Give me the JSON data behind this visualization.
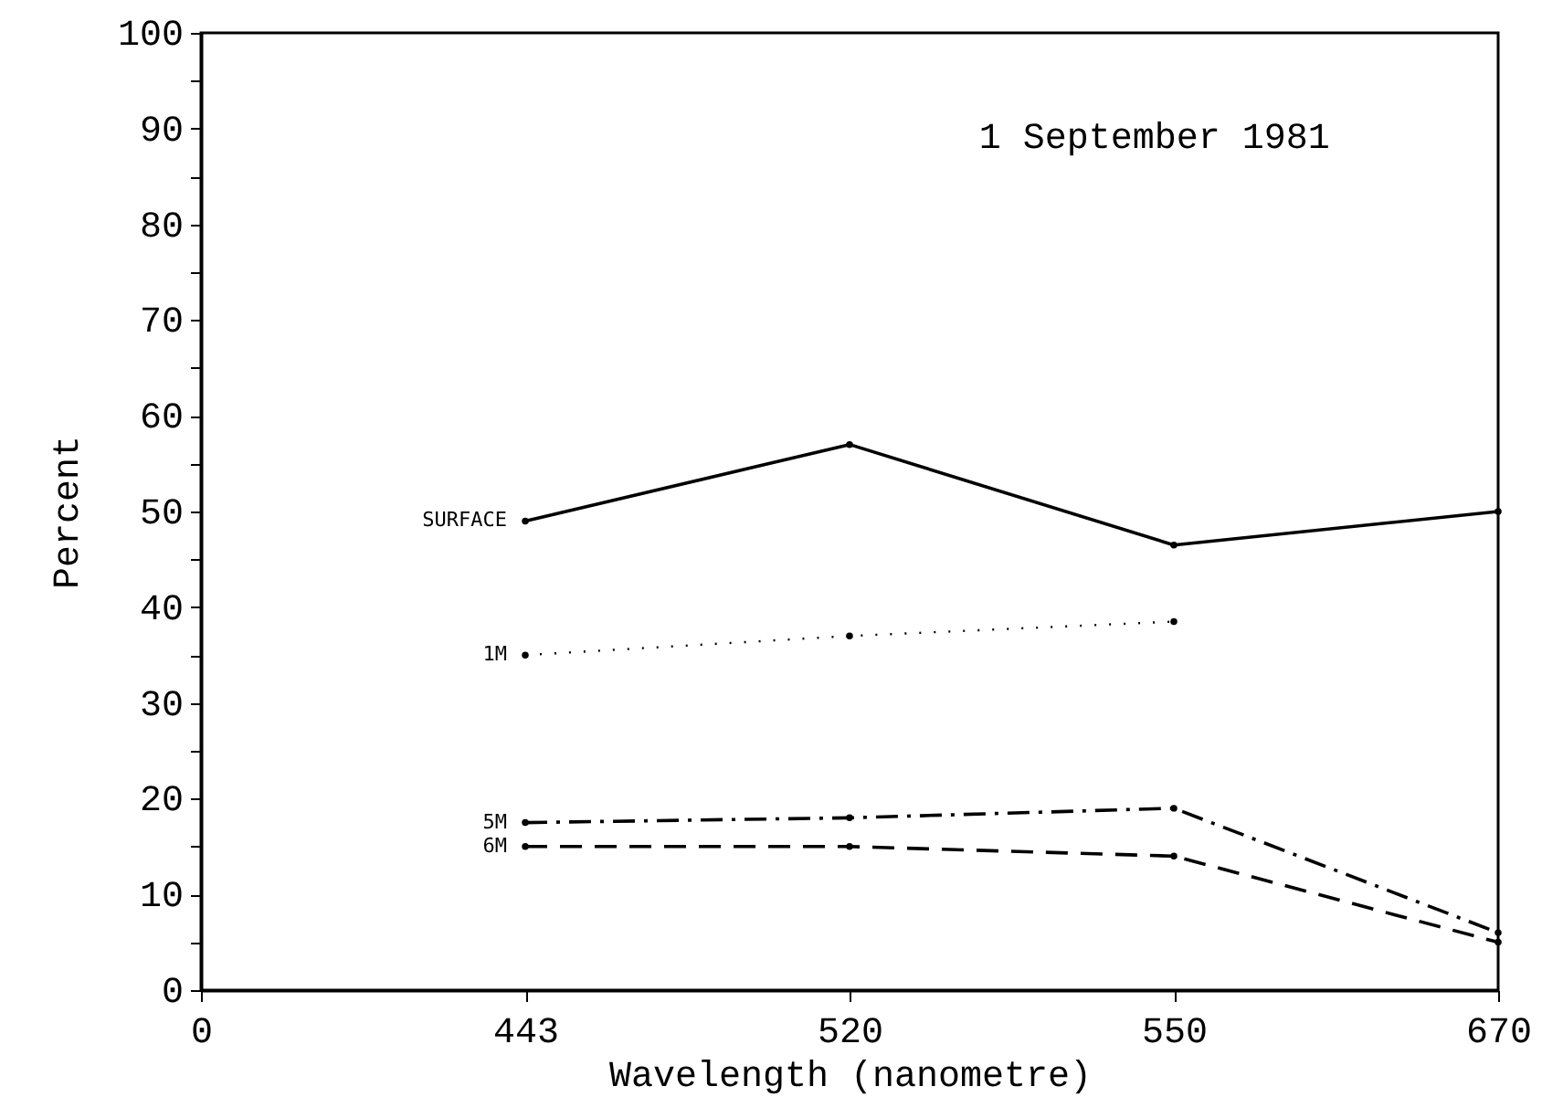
{
  "chart_data": {
    "type": "line",
    "xlabel": "Wavelength (nanometre)",
    "ylabel": "Percent",
    "annotations": [
      "1 September 1981"
    ],
    "categories": [
      "0",
      "443",
      "520",
      "550",
      "670"
    ],
    "series": [
      {
        "name": "SURFACE",
        "color": "#000000",
        "line_style": "solid",
        "values": [
          null,
          49,
          57,
          46.5,
          50
        ]
      },
      {
        "name": "1M",
        "color": "#000000",
        "line_style": "dotted",
        "values": [
          null,
          35,
          37,
          38.5,
          null
        ]
      },
      {
        "name": "5M",
        "color": "#000000",
        "line_style": "dashdot",
        "values": [
          null,
          17.5,
          18,
          19,
          6
        ]
      },
      {
        "name": "6M",
        "color": "#000000",
        "line_style": "dashed",
        "values": [
          null,
          15,
          15,
          14,
          5
        ]
      }
    ],
    "ylim": [
      0,
      100
    ],
    "yticks": [
      0,
      {
        "value": 5,
        "label": null
      },
      10,
      {
        "value": 15,
        "label": null
      },
      20,
      {
        "value": 25,
        "label": null
      },
      30,
      {
        "value": 35,
        "label": null
      },
      40,
      {
        "value": 45,
        "label": null
      },
      50,
      {
        "value": 55,
        "label": null
      },
      60,
      {
        "value": 65,
        "label": null
      },
      70,
      {
        "value": 75,
        "label": null
      },
      80,
      {
        "value": 85,
        "label": null
      },
      90,
      {
        "value": 95,
        "label": null
      },
      100
    ],
    "marker": "circle"
  }
}
